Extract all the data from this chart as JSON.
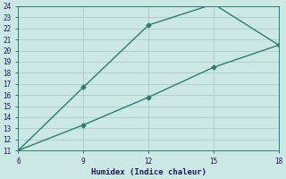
{
  "xlabel": "Humidex (Indice chaleur)",
  "xlim": [
    6,
    18
  ],
  "ylim": [
    11,
    24
  ],
  "xticks": [
    6,
    9,
    12,
    15,
    18
  ],
  "yticks": [
    11,
    12,
    13,
    14,
    15,
    16,
    17,
    18,
    19,
    20,
    21,
    22,
    23,
    24
  ],
  "line1_x": [
    6,
    9,
    12,
    15,
    18
  ],
  "line1_y": [
    11,
    16.7,
    22.3,
    24.2,
    20.5
  ],
  "line1_markers": [
    true,
    true,
    true,
    true,
    true
  ],
  "line2_x": [
    6,
    9,
    12,
    15,
    18
  ],
  "line2_y": [
    11,
    13.3,
    15.8,
    18.5,
    20.5
  ],
  "line_color": "#2e7d6e",
  "bg_color": "#cce8e4",
  "grid_color": "#aaccc8",
  "marker": "D",
  "marker_size": 2.5,
  "line_width": 1.0
}
